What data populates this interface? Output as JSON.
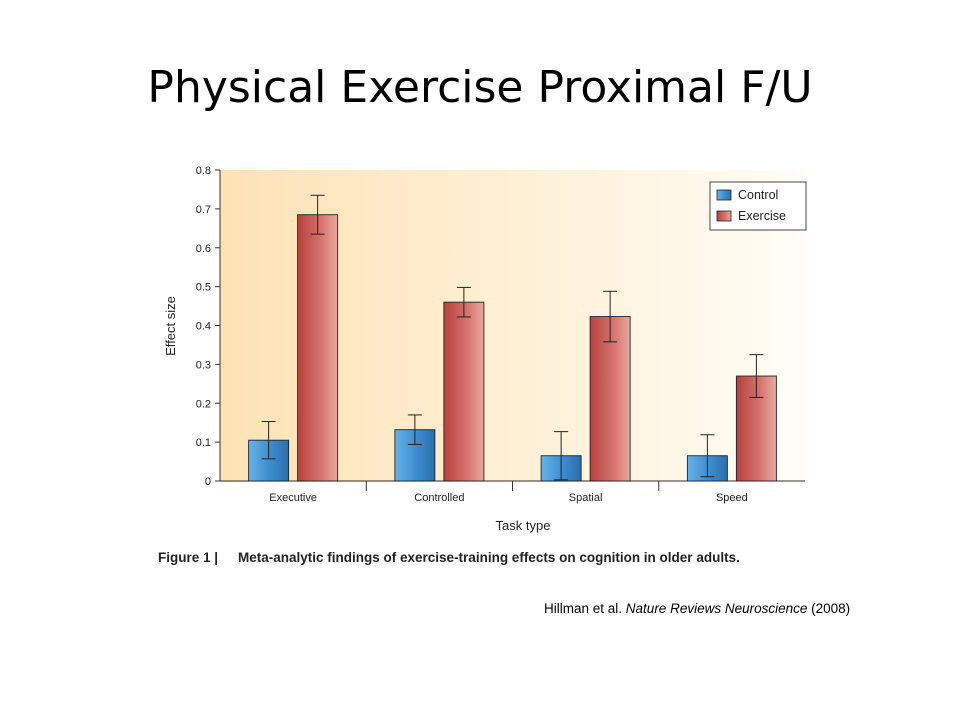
{
  "slide": {
    "title": "Physical Exercise Proximal F/U"
  },
  "figure": {
    "caption_label": "Figure 1 |",
    "caption_text": "Meta-analytic findings of exercise-training effects on cognition in older adults."
  },
  "citation": {
    "authors": "Hillman et al.",
    "journal": "Nature Reviews Neuroscience",
    "year": "(2008)"
  },
  "colors": {
    "control": "#3f8fd0",
    "exercise": "#c65552",
    "plot_bg_left": "#fde2b4",
    "plot_bg_right": "#fffdf6"
  },
  "chart_data": {
    "type": "bar",
    "categories": [
      "Executive",
      "Controlled",
      "Spatial",
      "Speed"
    ],
    "series": [
      {
        "name": "Control",
        "values": [
          0.105,
          0.132,
          0.065,
          0.065
        ],
        "errors": [
          0.048,
          0.038,
          0.062,
          0.054
        ]
      },
      {
        "name": "Exercise",
        "values": [
          0.685,
          0.46,
          0.423,
          0.27
        ],
        "errors": [
          0.05,
          0.038,
          0.065,
          0.055
        ]
      }
    ],
    "xlabel": "Task type",
    "ylabel": "Effect size",
    "ylim": [
      0,
      0.8
    ],
    "yticks": [
      "0",
      "0.1",
      "0.2",
      "0.3",
      "0.4",
      "0.5",
      "0.6",
      "0.7",
      "0.8"
    ],
    "legend": "top-right",
    "grid": false
  }
}
